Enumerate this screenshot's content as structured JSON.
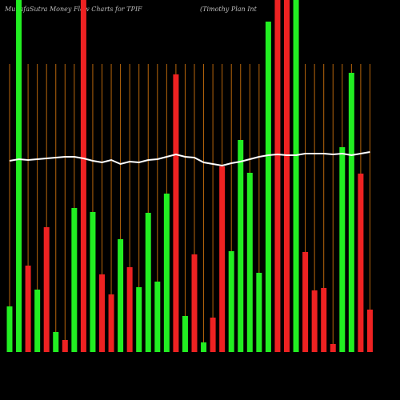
{
  "chart_data": {
    "type": "bar",
    "title": "MunafaSutra  Money Flow  Charts for TPIF",
    "subtitle": "(Timothy Plan  Int",
    "values": [
      57,
      440,
      108,
      78,
      156,
      25,
      15,
      180,
      440,
      175,
      97,
      72,
      141,
      106,
      81,
      174,
      88,
      198,
      347,
      45,
      122,
      12,
      43,
      232,
      126,
      265,
      224,
      99,
      413,
      440,
      440,
      440,
      125,
      77,
      80,
      10,
      256,
      349,
      223,
      53
    ],
    "colors": [
      "#22ee22",
      "#22ee22",
      "#ee2222",
      "#22ee22",
      "#ee2222",
      "#22ee22",
      "#ee2222",
      "#22ee22",
      "#ee2222",
      "#22ee22",
      "#ee2222",
      "#ee2222",
      "#22ee22",
      "#ee2222",
      "#22ee22",
      "#22ee22",
      "#22ee22",
      "#22ee22",
      "#ee2222",
      "#22ee22",
      "#ee2222",
      "#22ee22",
      "#ee2222",
      "#ee2222",
      "#22ee22",
      "#22ee22",
      "#22ee22",
      "#22ee22",
      "#22ee22",
      "#ee2222",
      "#ee2222",
      "#22ee22",
      "#ee2222",
      "#ee2222",
      "#ee2222",
      "#ee2222",
      "#22ee22",
      "#22ee22",
      "#ee2222",
      "#ee2222"
    ],
    "line": {
      "color": "#ffffff",
      "values": [
        239,
        241,
        240,
        241,
        242,
        243,
        244,
        244,
        242,
        239,
        237,
        240,
        235,
        238,
        237,
        240,
        241,
        244,
        247,
        244,
        243,
        237,
        235,
        233,
        236,
        238,
        241,
        244,
        246,
        247,
        246,
        246,
        248,
        248,
        248,
        247,
        248,
        246,
        248,
        250
      ]
    },
    "grid_color": "#b8660b"
  }
}
